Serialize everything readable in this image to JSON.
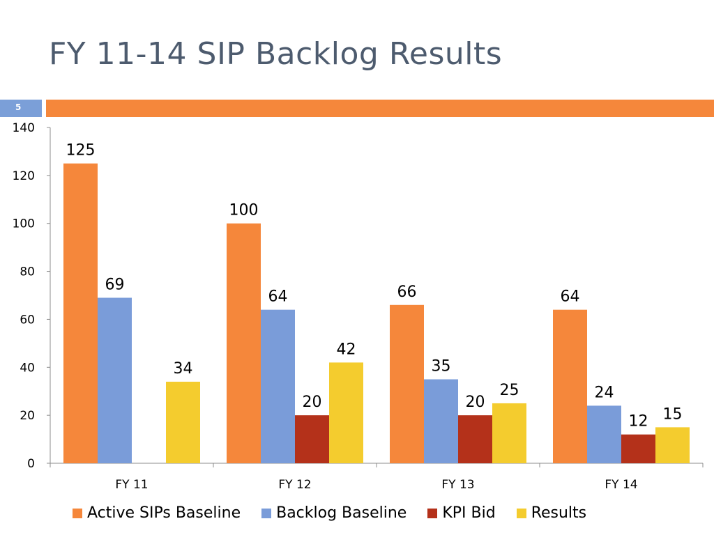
{
  "slide": {
    "title": "FY 11-14 SIP Backlog Results",
    "number": "5",
    "accent_color": "#f5873b",
    "number_box_color": "#7b9fd8"
  },
  "chart_data": {
    "type": "bar",
    "categories": [
      "FY 11",
      "FY 12",
      "FY 13",
      "FY 14"
    ],
    "series": [
      {
        "name": "Active SIPs Baseline",
        "color": "#f5873b",
        "values": [
          125,
          100,
          66,
          64
        ]
      },
      {
        "name": "Backlog Baseline",
        "color": "#7a9cd9",
        "values": [
          69,
          64,
          35,
          24
        ]
      },
      {
        "name": "KPI Bid",
        "color": "#b4311a",
        "values": [
          null,
          20,
          20,
          12
        ]
      },
      {
        "name": "Results",
        "color": "#f4cc2e",
        "values": [
          34,
          42,
          25,
          15
        ]
      }
    ],
    "ylim": [
      0,
      140
    ],
    "yticks": [
      0,
      20,
      40,
      60,
      80,
      100,
      120,
      140
    ],
    "grid": false,
    "legend_position": "bottom",
    "data_labels": true
  }
}
